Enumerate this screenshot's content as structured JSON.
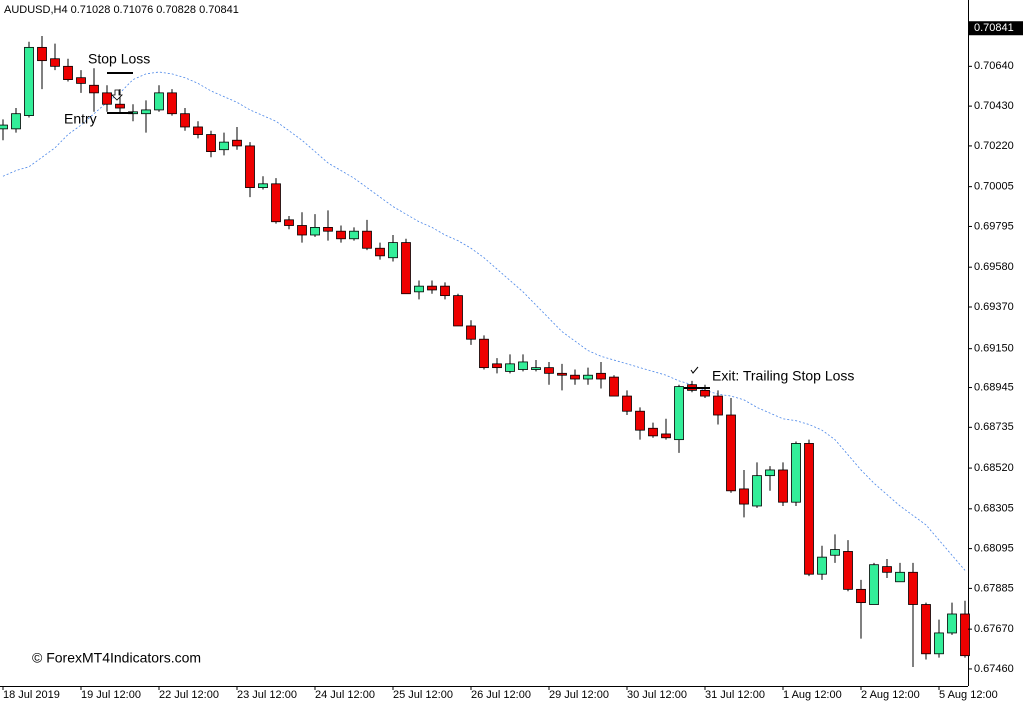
{
  "header": "AUDUSD,H4  0.71028 0.71076 0.70828 0.70841",
  "chart_data": {
    "type": "candlestick",
    "categories": [
      "18 Jul 2019",
      null,
      null,
      null,
      null,
      null,
      "19 Jul 12:00",
      null,
      null,
      null,
      null,
      null,
      "22 Jul 12:00",
      null,
      null,
      null,
      null,
      null,
      "23 Jul 12:00",
      null,
      null,
      null,
      null,
      null,
      "24 Jul 12:00",
      null,
      null,
      null,
      null,
      null,
      "25 Jul 12:00",
      null,
      null,
      null,
      null,
      null,
      "26 Jul 12:00",
      null,
      null,
      null,
      null,
      null,
      "29 Jul 12:00",
      null,
      null,
      null,
      null,
      null,
      "30 Jul 12:00",
      null,
      null,
      null,
      null,
      null,
      "31 Jul 12:00",
      null,
      null,
      null,
      null,
      null,
      "1 Aug 12:00",
      null,
      null,
      null,
      null,
      null,
      "2 Aug 12:00",
      null,
      null,
      null,
      null,
      null,
      "5 Aug 12:00",
      null,
      null
    ],
    "open": [
      0.7031,
      0.7031,
      0.7038,
      0.7074,
      0.7068,
      0.7064,
      0.7058,
      0.7054,
      0.705,
      0.7044,
      0.7039,
      0.7039,
      0.7041,
      0.705,
      0.7039,
      0.7032,
      0.7028,
      0.702,
      0.7025,
      0.7022,
      0.7,
      0.7002,
      0.6983,
      0.698,
      0.6975,
      0.6979,
      0.6977,
      0.6973,
      0.6977,
      0.6968,
      0.6963,
      0.6971,
      0.6945,
      0.6948,
      0.6948,
      0.6943,
      0.6927,
      0.692,
      0.6907,
      0.6903,
      0.6904,
      0.6904,
      0.6905,
      0.6902,
      0.6901,
      0.6899,
      0.6902,
      0.69,
      0.689,
      0.6882,
      0.6873,
      0.687,
      0.6867,
      0.6896,
      0.6893,
      0.689,
      0.688,
      0.6841,
      0.6832,
      0.6848,
      0.6851,
      0.6834,
      0.6865,
      0.6796,
      0.6806,
      0.6808,
      0.6788,
      0.678,
      0.68,
      0.6792,
      0.6797,
      0.678,
      0.6754,
      0.6765,
      0.6775
    ],
    "high": [
      0.7036,
      0.7042,
      0.7077,
      0.708,
      0.7076,
      0.7068,
      0.7062,
      0.7063,
      0.7054,
      0.7052,
      0.7044,
      0.7046,
      0.7054,
      0.7052,
      0.7042,
      0.7035,
      0.703,
      0.7029,
      0.7032,
      0.7024,
      0.7006,
      0.7005,
      0.6985,
      0.6987,
      0.6986,
      0.6988,
      0.698,
      0.6979,
      0.6983,
      0.6971,
      0.6975,
      0.6973,
      0.6951,
      0.6951,
      0.695,
      0.6944,
      0.693,
      0.6922,
      0.691,
      0.6912,
      0.6912,
      0.6909,
      0.6908,
      0.6907,
      0.6904,
      0.6905,
      0.6908,
      0.6901,
      0.6893,
      0.6884,
      0.6876,
      0.6878,
      0.6896,
      0.6898,
      0.6896,
      0.6893,
      0.6889,
      0.6851,
      0.6855,
      0.6853,
      0.6855,
      0.6866,
      0.6867,
      0.6811,
      0.6817,
      0.6814,
      0.6793,
      0.6802,
      0.6804,
      0.6802,
      0.6802,
      0.6781,
      0.6772,
      0.6781,
      0.6782
    ],
    "low": [
      0.7025,
      0.7029,
      0.7037,
      0.7052,
      0.7062,
      0.7056,
      0.705,
      0.704,
      0.704,
      0.7039,
      0.7035,
      0.7029,
      0.704,
      0.7038,
      0.703,
      0.7026,
      0.7016,
      0.7017,
      0.702,
      0.6995,
      0.6999,
      0.6981,
      0.6978,
      0.6971,
      0.6974,
      0.6972,
      0.6971,
      0.6972,
      0.6967,
      0.6962,
      0.6961,
      0.6944,
      0.6941,
      0.6944,
      0.6941,
      0.6927,
      0.6917,
      0.6904,
      0.6902,
      0.6902,
      0.6903,
      0.6903,
      0.6896,
      0.6893,
      0.6896,
      0.6896,
      0.6894,
      0.689,
      0.688,
      0.6867,
      0.6868,
      0.6867,
      0.686,
      0.6892,
      0.6889,
      0.6875,
      0.6839,
      0.6826,
      0.6831,
      0.684,
      0.6832,
      0.6832,
      0.6795,
      0.6793,
      0.6802,
      0.6787,
      0.6762,
      0.678,
      0.6794,
      0.6792,
      0.6747,
      0.6751,
      0.6752,
      0.6764,
      0.6752
    ],
    "close": [
      0.7033,
      0.7039,
      0.7074,
      0.7067,
      0.7064,
      0.7057,
      0.7055,
      0.705,
      0.7044,
      0.7042,
      0.704,
      0.7041,
      0.705,
      0.7039,
      0.7032,
      0.7028,
      0.7019,
      0.7024,
      0.7022,
      0.7,
      0.7002,
      0.6982,
      0.698,
      0.6975,
      0.6979,
      0.6977,
      0.6973,
      0.6977,
      0.6968,
      0.6964,
      0.6971,
      0.6944,
      0.6948,
      0.6946,
      0.6943,
      0.6927,
      0.692,
      0.6905,
      0.6905,
      0.6907,
      0.6908,
      0.6905,
      0.6902,
      0.6901,
      0.6899,
      0.6901,
      0.6899,
      0.689,
      0.6882,
      0.6872,
      0.6869,
      0.6868,
      0.6895,
      0.6893,
      0.689,
      0.688,
      0.684,
      0.6833,
      0.6848,
      0.6851,
      0.6834,
      0.6865,
      0.6796,
      0.6805,
      0.6809,
      0.6788,
      0.6781,
      0.6801,
      0.6797,
      0.6797,
      0.678,
      0.6754,
      0.6765,
      0.6775,
      0.6753
    ],
    "ma_values": [
      0.7006,
      0.7009,
      0.7011,
      0.7016,
      0.7021,
      0.7028,
      0.7033,
      0.7039,
      0.7045,
      0.705,
      0.7057,
      0.706,
      0.7061,
      0.706,
      0.7058,
      0.7055,
      0.7051,
      0.7048,
      0.7045,
      0.7041,
      0.7038,
      0.7035,
      0.703,
      0.7025,
      0.7019,
      0.7013,
      0.7009,
      0.7005,
      0.7,
      0.6995,
      0.699,
      0.6986,
      0.6982,
      0.6979,
      0.6975,
      0.6972,
      0.6968,
      0.6963,
      0.6957,
      0.6951,
      0.6945,
      0.6938,
      0.6931,
      0.6924,
      0.6919,
      0.6914,
      0.6911,
      0.6909,
      0.6907,
      0.6905,
      0.6903,
      0.6901,
      0.6898,
      0.6896,
      0.6893,
      0.6891,
      0.689,
      0.6888,
      0.6884,
      0.6881,
      0.6878,
      0.6877,
      0.6875,
      0.6872,
      0.6867,
      0.6859,
      0.6851,
      0.6844,
      0.6838,
      0.6832,
      0.6827,
      0.6822,
      0.6814,
      0.6806,
      0.6798
    ],
    "up_color": "#33ee99",
    "down_color": "#ee0000",
    "ma_color": "#4a86e8",
    "ylim": [
      0.6737,
      0.7099
    ],
    "yticks": [
      {
        "value": 0.7064,
        "label": "0.70640"
      },
      {
        "value": 0.7043,
        "label": "0.70430"
      },
      {
        "value": 0.7022,
        "label": "0.70220"
      },
      0.70005,
      0.69795,
      {
        "value": 0.6958,
        "label": "0.69580"
      },
      {
        "value": 0.6937,
        "label": "0.69370"
      },
      {
        "value": 0.6915,
        "label": "0.69150"
      },
      0.68945,
      0.68735,
      {
        "value": 0.6852,
        "label": "0.68520"
      },
      0.68305,
      0.68095,
      0.67885,
      {
        "value": 0.6767,
        "label": "0.67670"
      },
      {
        "value": 0.6746,
        "label": "0.67460"
      }
    ],
    "current_price": 0.70841,
    "annotations": [
      "Stop Loss",
      "Entry",
      "Exit: Trailing Stop Loss"
    ],
    "watermark": "© ForexMT4Indicators.com"
  }
}
